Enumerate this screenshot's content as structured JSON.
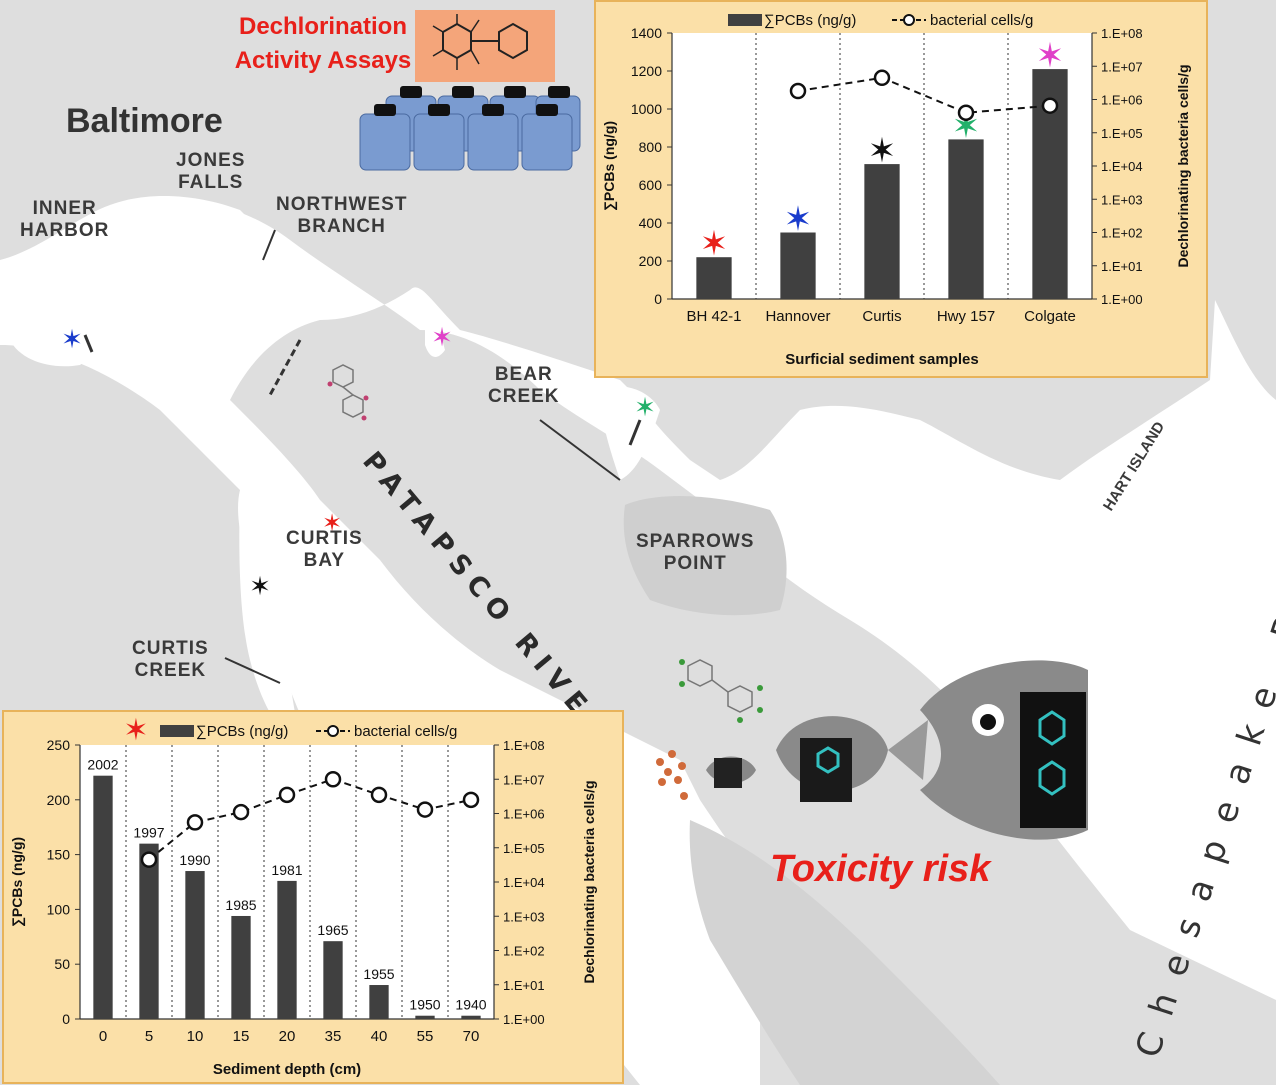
{
  "figure": {
    "title": "Dechlorination\nActivity Assays",
    "toxicity_label": "Toxicity risk"
  },
  "map": {
    "city": "Baltimore",
    "labels": {
      "jones_falls": "JONES\nFALLS",
      "inner_harbor": "INNER\nHARBOR",
      "northwest_branch": "NORTHWEST\nBRANCH",
      "bear_creek": "BEAR\nCREEK",
      "curtis_bay": "CURTIS\nBAY",
      "curtis_creek": "CURTIS\nCREEK",
      "sparrows_point": "SPARROWS\nPOINT",
      "hart_island": "HART ISLAND",
      "river": "PATAPSCO RIVER",
      "bay": "Chesapeake Bay"
    },
    "site_colors": {
      "BH 42-1": "#e8201a",
      "Hannover": "#1a3ccc",
      "Curtis": "#111111",
      "Hwy 157": "#22b06a",
      "Colgate": "#e040c8"
    }
  },
  "chart_data": [
    {
      "type": "bar",
      "categories": [
        "BH 42-1",
        "Hannover",
        "Curtis",
        "Hwy 157",
        "Colgate"
      ],
      "series": [
        {
          "name": "∑PCBs (ng/g)",
          "kind": "bar",
          "values": [
            220,
            350,
            710,
            840,
            1210
          ]
        },
        {
          "name": "bacterial cells/g",
          "kind": "line",
          "axis": "right",
          "values": [
            null,
            1800000,
            4500000,
            400000,
            650000
          ]
        }
      ],
      "xlabel": "Surficial sediment samples",
      "ylabel": "∑PCBs (ng/g)",
      "ylabel_right": "Dechlorinating bacteria cells/g",
      "ylim": [
        0,
        1400
      ],
      "yticks": [
        "0",
        "200",
        "400",
        "600",
        "800",
        "1000",
        "1200",
        "1400"
      ],
      "y2_log_range": [
        1,
        100000000
      ],
      "y2ticks": [
        "1.E+00",
        "1.E+01",
        "1.E+02",
        "1.E+03",
        "1.E+04",
        "1.E+05",
        "1.E+06",
        "1.E+07",
        "1.E+08"
      ],
      "legend": "top",
      "site_markers": [
        "red-star",
        "blue-star",
        "black-star",
        "green-star",
        "pink-star"
      ]
    },
    {
      "type": "bar",
      "categories": [
        "0",
        "5",
        "10",
        "15",
        "20",
        "35",
        "40",
        "55",
        "70"
      ],
      "series": [
        {
          "name": "∑PCBs (ng/g)",
          "kind": "bar",
          "values": [
            222,
            160,
            135,
            94,
            126,
            71,
            31,
            3,
            3
          ]
        },
        {
          "name": "bacterial cells/g",
          "kind": "line",
          "axis": "right",
          "values": [
            null,
            45000,
            550000,
            1100000,
            3500000,
            10000000,
            3500000,
            1300000,
            2500000
          ]
        }
      ],
      "bar_labels": [
        "2002",
        "1997",
        "1990",
        "1985",
        "1981",
        "1965",
        "1955",
        "1950",
        "1940"
      ],
      "xlabel": "Sediment depth (cm)",
      "ylabel": "∑PCBs (ng/g)",
      "ylabel_right": "Dechlorinating bacteria cells/g",
      "ylim": [
        0,
        250
      ],
      "yticks": [
        "0",
        "50",
        "100",
        "150",
        "200",
        "250"
      ],
      "y2_log_range": [
        1,
        100000000
      ],
      "y2ticks": [
        "1.E+00",
        "1.E+01",
        "1.E+02",
        "1.E+03",
        "1.E+04",
        "1.E+05",
        "1.E+06",
        "1.E+07",
        "1.E+08"
      ],
      "legend": "top",
      "site_marker": "red-star"
    }
  ]
}
